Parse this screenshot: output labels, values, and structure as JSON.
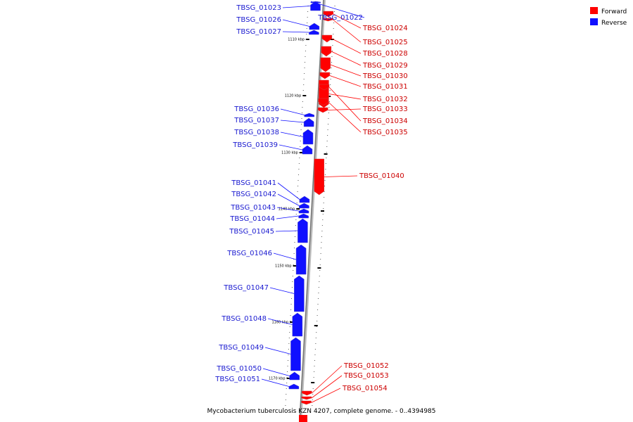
{
  "legend": {
    "forward_label": "Forward",
    "reverse_label": "Reverse",
    "forward_color": "#ff0000",
    "reverse_color": "#1010ff"
  },
  "caption": "Mycobacterium tuberculosis KZN 4207, complete genome. - 0..4394985",
  "ticks": [
    {
      "label": "1110 kbp"
    },
    {
      "label": "1120 kbp"
    },
    {
      "label": "1130 kbp"
    },
    {
      "label": "1140 kbp"
    },
    {
      "label": "1150 kbp"
    },
    {
      "label": "1160 kbp"
    },
    {
      "label": "1170 kbp"
    }
  ],
  "genes": [
    {
      "name": "TBSG_01022",
      "strand": "reverse"
    },
    {
      "name": "TBSG_01023",
      "strand": "reverse"
    },
    {
      "name": "TBSG_01024",
      "strand": "forward"
    },
    {
      "name": "TBSG_01025",
      "strand": "forward"
    },
    {
      "name": "TBSG_01026",
      "strand": "reverse"
    },
    {
      "name": "TBSG_01027",
      "strand": "reverse"
    },
    {
      "name": "TBSG_01028",
      "strand": "forward"
    },
    {
      "name": "TBSG_01029",
      "strand": "forward"
    },
    {
      "name": "TBSG_01030",
      "strand": "forward"
    },
    {
      "name": "TBSG_01031",
      "strand": "forward"
    },
    {
      "name": "TBSG_01032",
      "strand": "forward"
    },
    {
      "name": "TBSG_01033",
      "strand": "forward"
    },
    {
      "name": "TBSG_01034",
      "strand": "forward"
    },
    {
      "name": "TBSG_01035",
      "strand": "forward"
    },
    {
      "name": "TBSG_01036",
      "strand": "reverse"
    },
    {
      "name": "TBSG_01037",
      "strand": "reverse"
    },
    {
      "name": "TBSG_01038",
      "strand": "reverse"
    },
    {
      "name": "TBSG_01039",
      "strand": "reverse"
    },
    {
      "name": "TBSG_01040",
      "strand": "forward"
    },
    {
      "name": "TBSG_01041",
      "strand": "reverse"
    },
    {
      "name": "TBSG_01042",
      "strand": "reverse"
    },
    {
      "name": "TBSG_01043",
      "strand": "reverse"
    },
    {
      "name": "TBSG_01044",
      "strand": "reverse"
    },
    {
      "name": "TBSG_01045",
      "strand": "reverse"
    },
    {
      "name": "TBSG_01046",
      "strand": "reverse"
    },
    {
      "name": "TBSG_01047",
      "strand": "reverse"
    },
    {
      "name": "TBSG_01048",
      "strand": "reverse"
    },
    {
      "name": "TBSG_01049",
      "strand": "reverse"
    },
    {
      "name": "TBSG_01050",
      "strand": "reverse"
    },
    {
      "name": "TBSG_01051",
      "strand": "reverse"
    },
    {
      "name": "TBSG_01052",
      "strand": "forward"
    },
    {
      "name": "TBSG_01053",
      "strand": "forward"
    },
    {
      "name": "TBSG_01054",
      "strand": "forward"
    }
  ]
}
